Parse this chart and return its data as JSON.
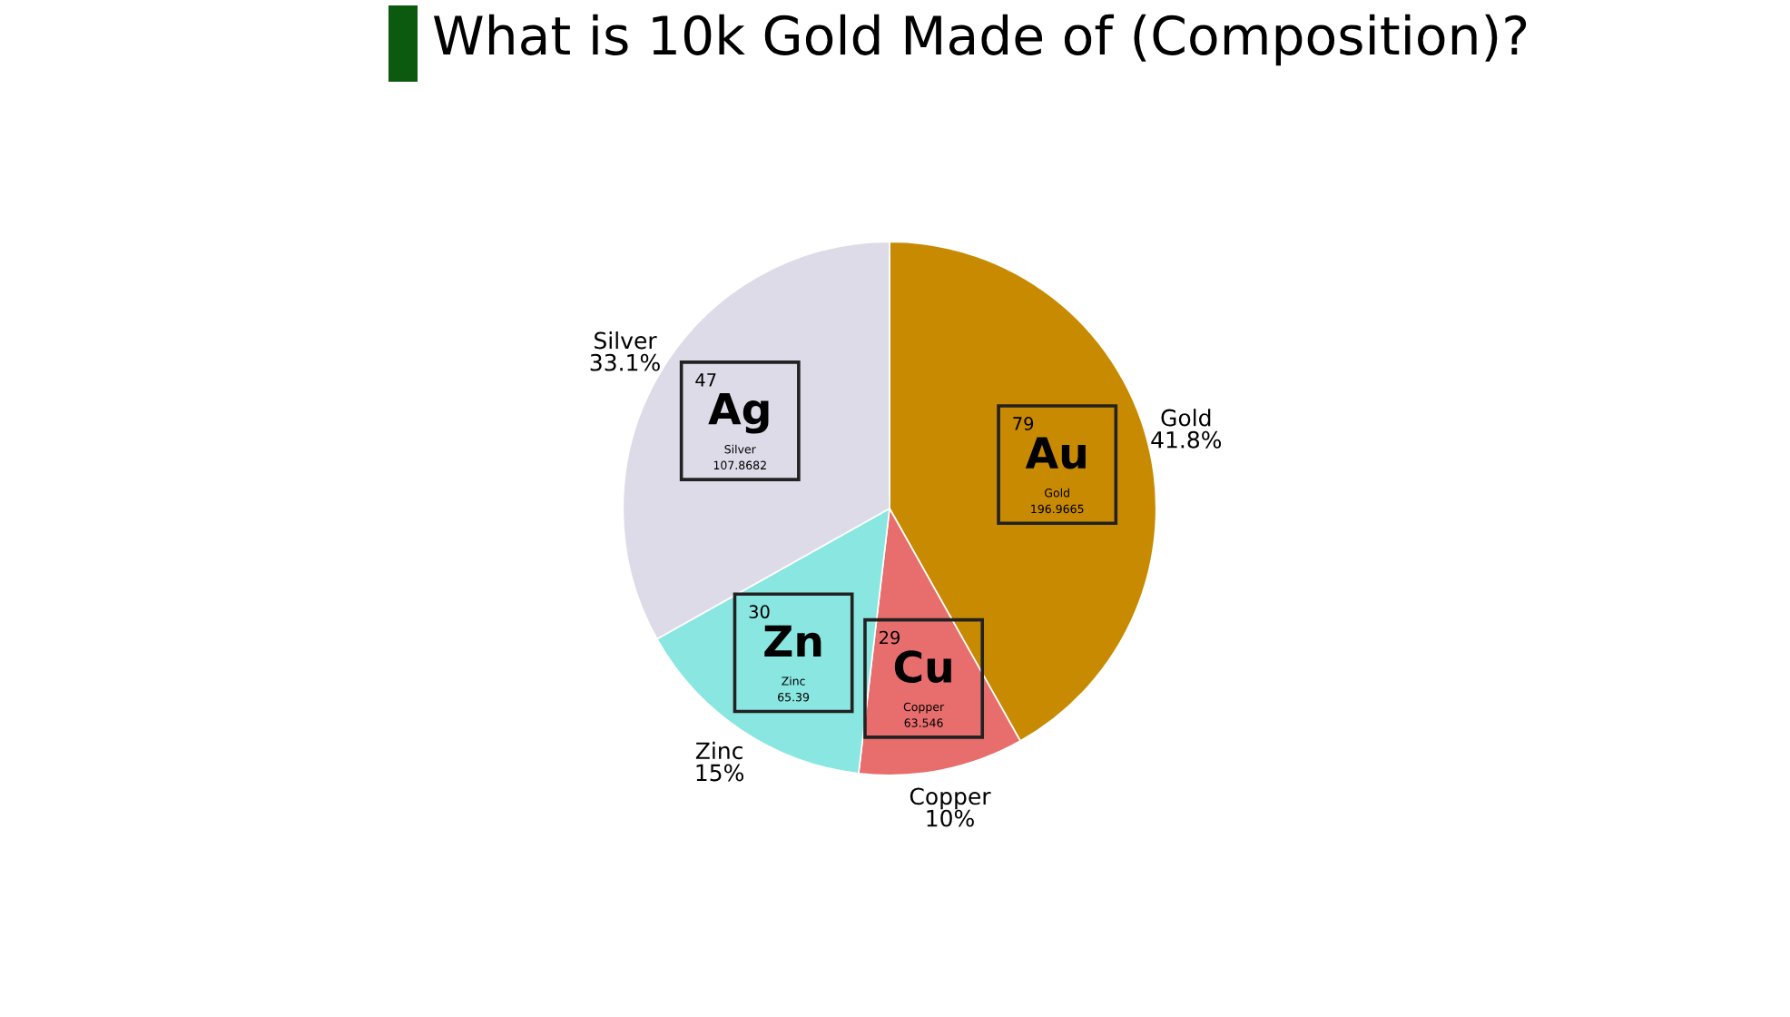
{
  "chart_data": {
    "type": "pie",
    "title": "What is 10k Gold Made of (Composition)?",
    "categories": [
      "Gold",
      "Copper",
      "Zinc",
      "Silver"
    ],
    "values": [
      41.8,
      10,
      15,
      33.1
    ],
    "colors": [
      "#c88a00",
      "#e86e6e",
      "#8ae6e1",
      "#dedbe8"
    ],
    "value_labels": [
      "41.8%",
      "10%",
      "15%",
      "33.1%"
    ],
    "annotations": [
      "79",
      "Au",
      "Gold",
      "196.9665",
      "29",
      "Cu",
      "Copper",
      "63.546",
      "30",
      "Zn",
      "Zinc",
      "65.39",
      "47",
      "Ag",
      "Silver",
      "107.8682"
    ]
  }
}
